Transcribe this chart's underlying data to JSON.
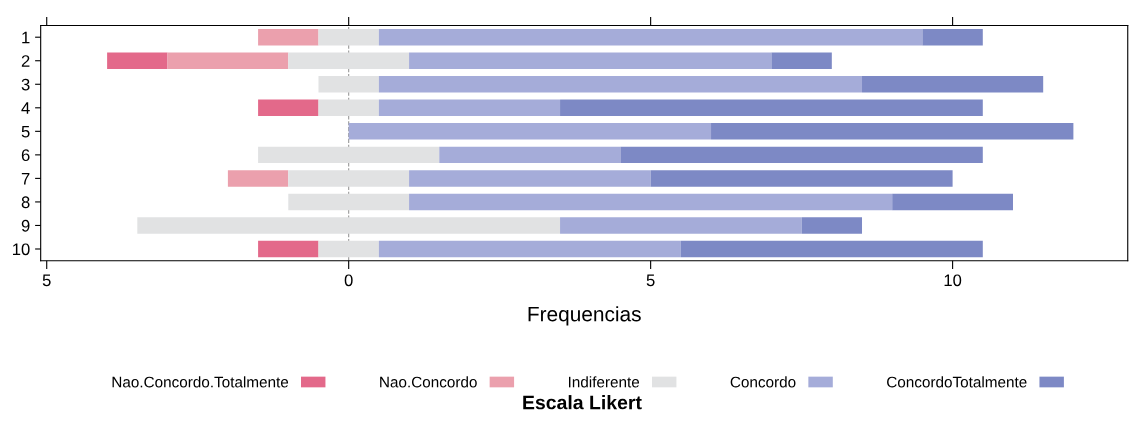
{
  "chart_data": {
    "type": "bar",
    "orientation": "horizontal",
    "xlabel": "Frequencias",
    "legend_title": "Escala Likert",
    "legend": "bottom",
    "grid": false,
    "categories": [
      "1",
      "2",
      "3",
      "4",
      "5",
      "6",
      "7",
      "8",
      "9",
      "10"
    ],
    "series": [
      {
        "name": "Nao.Concordo.Totalmente",
        "color": "#e3698a",
        "base": [
          null,
          -4,
          null,
          -1.5,
          null,
          null,
          null,
          null,
          null,
          -1.5
        ],
        "values": [
          null,
          1,
          null,
          1,
          null,
          null,
          null,
          null,
          null,
          1
        ]
      },
      {
        "name": "Nao.Concordo",
        "color": "#eba0ad",
        "base": [
          -1.5,
          -3,
          null,
          null,
          null,
          null,
          -2,
          null,
          null,
          null
        ],
        "values": [
          1,
          2,
          null,
          null,
          null,
          null,
          1,
          null,
          null,
          null
        ]
      },
      {
        "name": "Indiferente",
        "color": "#e1e2e3",
        "base": [
          -0.5,
          -1,
          -0.5,
          -0.5,
          null,
          -1.5,
          -1,
          -1,
          -3.5,
          -0.5
        ],
        "values": [
          1,
          2,
          1,
          1,
          null,
          3,
          2,
          2,
          7,
          1
        ]
      },
      {
        "name": "Concordo",
        "color": "#a5acd9",
        "base": [
          0.5,
          1,
          0.5,
          0.5,
          0,
          1.5,
          1,
          1,
          3.5,
          0.5
        ],
        "values": [
          9,
          6,
          8,
          3,
          6,
          3,
          4,
          8,
          4,
          5
        ]
      },
      {
        "name": "ConcordoTotalmente",
        "color": "#7d89c5",
        "base": [
          9.5,
          7,
          8.5,
          3.5,
          6,
          4.5,
          5,
          9,
          7.5,
          5.5
        ],
        "values": [
          1,
          1,
          3,
          7,
          6,
          6,
          5,
          2,
          1,
          5
        ]
      }
    ],
    "xlim": [
      -5.1,
      12.9
    ],
    "xticks": [
      {
        "value": -5,
        "label": "5"
      },
      0,
      5,
      10
    ],
    "ref_lines": [
      {
        "axis": "x",
        "value": 0,
        "color": "#999999",
        "line_style": "dashed"
      }
    ]
  }
}
